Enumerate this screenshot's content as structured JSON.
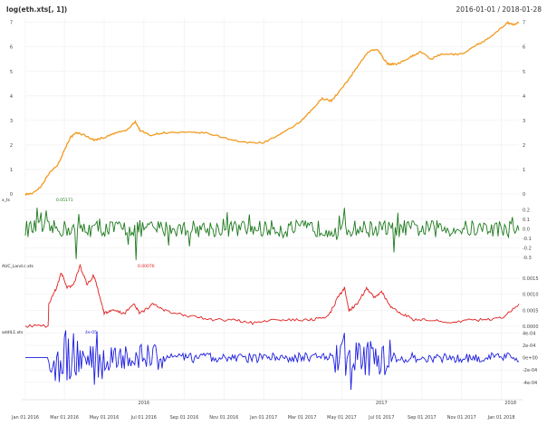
{
  "chart_data": {
    "type": "line",
    "title": "log(eth.xts[, 1])",
    "date_range": "2016-01-01 / 2018-01-28",
    "x_range": [
      "2016-01-01",
      "2018-01-28"
    ],
    "x_ticks": [
      "Jan 01 2016",
      "Mar 01 2016",
      "May 01 2016",
      "Jul 01 2016",
      "Sep 01 2016",
      "Nov 01 2016",
      "Jan 01 2017",
      "Mar 01 2017",
      "May 01 2017",
      "Jul 01 2017",
      "Sep 01 2017",
      "Nov 01 2017",
      "Jan 01 2018"
    ],
    "year_labels": [
      {
        "date": "2016-07-01",
        "label": "2016"
      },
      {
        "date": "2017-07-01",
        "label": "2017"
      },
      {
        "date": "2018-01-15",
        "label": "2018"
      }
    ],
    "grid": true,
    "panels": [
      {
        "name": "log(eth.xts[, 1])",
        "color": "#f29a1f",
        "ylim": [
          0,
          7.1
        ],
        "left_ticks": [
          0,
          1,
          2,
          3,
          4,
          5,
          6,
          7
        ],
        "right_ticks": [
          0,
          1,
          2,
          3,
          4,
          5,
          6,
          7
        ],
        "series": [
          {
            "x": "2016-01-01",
            "y": 0.0
          },
          {
            "x": "2016-01-10",
            "y": 0.0
          },
          {
            "x": "2016-01-25",
            "y": 0.3
          },
          {
            "x": "2016-02-05",
            "y": 0.8
          },
          {
            "x": "2016-02-20",
            "y": 1.2
          },
          {
            "x": "2016-03-01",
            "y": 1.8
          },
          {
            "x": "2016-03-10",
            "y": 2.3
          },
          {
            "x": "2016-03-20",
            "y": 2.5
          },
          {
            "x": "2016-04-01",
            "y": 2.4
          },
          {
            "x": "2016-04-15",
            "y": 2.2
          },
          {
            "x": "2016-05-01",
            "y": 2.3
          },
          {
            "x": "2016-05-20",
            "y": 2.5
          },
          {
            "x": "2016-06-05",
            "y": 2.6
          },
          {
            "x": "2016-06-18",
            "y": 2.95
          },
          {
            "x": "2016-06-25",
            "y": 2.6
          },
          {
            "x": "2016-07-10",
            "y": 2.4
          },
          {
            "x": "2016-08-01",
            "y": 2.5
          },
          {
            "x": "2016-09-01",
            "y": 2.5
          },
          {
            "x": "2016-10-01",
            "y": 2.5
          },
          {
            "x": "2016-11-01",
            "y": 2.3
          },
          {
            "x": "2016-12-01",
            "y": 2.1
          },
          {
            "x": "2017-01-01",
            "y": 2.1
          },
          {
            "x": "2017-02-01",
            "y": 2.5
          },
          {
            "x": "2017-03-01",
            "y": 3.0
          },
          {
            "x": "2017-03-15",
            "y": 3.4
          },
          {
            "x": "2017-04-01",
            "y": 3.9
          },
          {
            "x": "2017-04-15",
            "y": 3.8
          },
          {
            "x": "2017-05-01",
            "y": 4.3
          },
          {
            "x": "2017-05-20",
            "y": 5.0
          },
          {
            "x": "2017-06-10",
            "y": 5.8
          },
          {
            "x": "2017-06-25",
            "y": 5.9
          },
          {
            "x": "2017-07-10",
            "y": 5.3
          },
          {
            "x": "2017-07-25",
            "y": 5.3
          },
          {
            "x": "2017-08-15",
            "y": 5.6
          },
          {
            "x": "2017-08-30",
            "y": 5.8
          },
          {
            "x": "2017-09-15",
            "y": 5.5
          },
          {
            "x": "2017-10-01",
            "y": 5.7
          },
          {
            "x": "2017-11-01",
            "y": 5.7
          },
          {
            "x": "2017-11-25",
            "y": 6.1
          },
          {
            "x": "2017-12-10",
            "y": 6.3
          },
          {
            "x": "2017-12-25",
            "y": 6.6
          },
          {
            "x": "2018-01-10",
            "y": 7.0
          },
          {
            "x": "2018-01-20",
            "y": 6.9
          },
          {
            "x": "2018-01-28",
            "y": 7.0
          }
        ]
      },
      {
        "name": "x_ts",
        "color": "#1e7a1e",
        "value_label": "0.05171",
        "ylim": [
          -0.35,
          0.25
        ],
        "right_ticks": [
          "0.2",
          "0.1",
          "0.0",
          "-0.1",
          "-0.2",
          "-0.3"
        ],
        "right_tick_values": [
          0.2,
          0.1,
          0.0,
          -0.1,
          -0.2,
          -0.3
        ]
      },
      {
        "name": "AUC_Land.c.xts",
        "color": "#e11e1e",
        "value_label": "0.00076",
        "ylim": [
          0,
          0.0019
        ],
        "right_ticks": [
          "0.0015",
          "0.0010",
          "0.0005",
          "0.0000"
        ],
        "right_tick_values": [
          0.0015,
          0.001,
          0.0005,
          0.0
        ],
        "series": [
          {
            "x": "2016-01-01",
            "y": 1e-05
          },
          {
            "x": "2016-02-05",
            "y": 1e-05
          },
          {
            "x": "2016-02-06",
            "y": 0.0007
          },
          {
            "x": "2016-02-18",
            "y": 0.0012
          },
          {
            "x": "2016-02-25",
            "y": 0.0017
          },
          {
            "x": "2016-03-05",
            "y": 0.0012
          },
          {
            "x": "2016-03-15",
            "y": 0.0013
          },
          {
            "x": "2016-03-25",
            "y": 0.0019
          },
          {
            "x": "2016-04-05",
            "y": 0.0013
          },
          {
            "x": "2016-04-15",
            "y": 0.0016
          },
          {
            "x": "2016-04-22",
            "y": 0.0011
          },
          {
            "x": "2016-05-01",
            "y": 0.0004
          },
          {
            "x": "2016-05-15",
            "y": 0.0005
          },
          {
            "x": "2016-06-01",
            "y": 0.0004
          },
          {
            "x": "2016-06-15",
            "y": 0.0007
          },
          {
            "x": "2016-06-25",
            "y": 0.0004
          },
          {
            "x": "2016-07-15",
            "y": 0.0007
          },
          {
            "x": "2016-08-01",
            "y": 0.0005
          },
          {
            "x": "2016-08-20",
            "y": 0.0004
          },
          {
            "x": "2016-09-15",
            "y": 0.0003
          },
          {
            "x": "2016-10-15",
            "y": 0.0002
          },
          {
            "x": "2016-11-15",
            "y": 0.0002
          },
          {
            "x": "2016-12-15",
            "y": 0.0001
          },
          {
            "x": "2017-01-15",
            "y": 0.0002
          },
          {
            "x": "2017-02-15",
            "y": 0.0002
          },
          {
            "x": "2017-03-15",
            "y": 0.0002
          },
          {
            "x": "2017-04-10",
            "y": 0.0003
          },
          {
            "x": "2017-04-25",
            "y": 0.0009
          },
          {
            "x": "2017-05-05",
            "y": 0.0012
          },
          {
            "x": "2017-05-12",
            "y": 0.0005
          },
          {
            "x": "2017-05-25",
            "y": 0.0007
          },
          {
            "x": "2017-06-08",
            "y": 0.0012
          },
          {
            "x": "2017-06-20",
            "y": 0.0009
          },
          {
            "x": "2017-07-01",
            "y": 0.0011
          },
          {
            "x": "2017-07-15",
            "y": 0.0006
          },
          {
            "x": "2017-08-01",
            "y": 0.0004
          },
          {
            "x": "2017-08-20",
            "y": 0.0002
          },
          {
            "x": "2017-09-15",
            "y": 0.0002
          },
          {
            "x": "2017-10-15",
            "y": 0.0001
          },
          {
            "x": "2017-11-15",
            "y": 0.0002
          },
          {
            "x": "2017-12-15",
            "y": 0.0002
          },
          {
            "x": "2018-01-05",
            "y": 0.0003
          },
          {
            "x": "2018-01-28",
            "y": 0.0007
          }
        ]
      },
      {
        "name": "addlL1.xts",
        "color": "#1e1ee1",
        "value_label": "4e-05",
        "ylim": [
          -0.00055,
          0.00045
        ],
        "right_ticks": [
          "4e-04",
          "2e-04",
          "0e+00",
          "-2e-04",
          "-4e-04"
        ],
        "right_tick_values": [
          0.0004,
          0.0002,
          0.0,
          -0.0002,
          -0.0004
        ]
      }
    ]
  }
}
